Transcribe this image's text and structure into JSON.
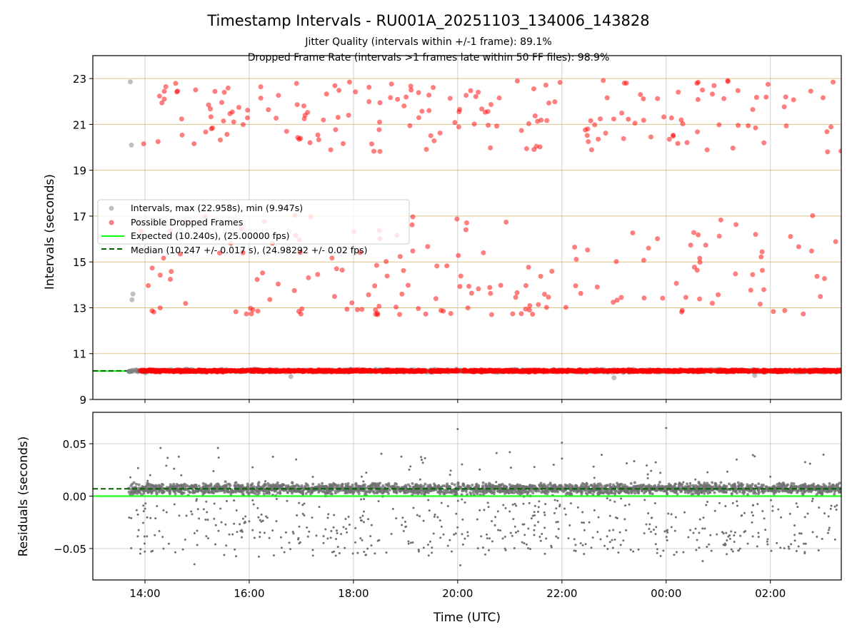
{
  "chart_data": [
    {
      "type": "scatter",
      "title": "Timestamp Intervals - RU001A_20251103_134006_143828",
      "subtitles": [
        "Jitter Quality (intervals within +/-1 frame): 89.1%",
        "Dropped Frame Rate (intervals >1 frames late within 50 FF files): 98.9%"
      ],
      "xlabel": "",
      "ylabel": "Intervals (seconds)",
      "xlim_hours_since_13": [
        0,
        14.36
      ],
      "ylim": [
        9,
        24
      ],
      "yticks": [
        "9",
        "11",
        "13",
        "15",
        "17",
        "19",
        "21",
        "23"
      ],
      "ytick_values": [
        9,
        11,
        13,
        15,
        17,
        19,
        21,
        23
      ],
      "grid": true,
      "legend": {
        "placement": "center-left",
        "entries": [
          "Intervals, max (22.958s), min (9.947s)",
          "Possible Dropped Frames",
          "Expected (10.240s), (25.00000 fps)",
          "Median (10.247 +/- 0.017 s), (24.98292 +/- 0.02 fps)"
        ]
      },
      "series": [
        {
          "name": "Intervals",
          "color": "#808080",
          "baseline": 10.247,
          "spread": 0.017,
          "max": 22.958,
          "min": 9.947,
          "x_start_hours": 0.68
        },
        {
          "name": "Possible Dropped Frames",
          "color": "#ff0000",
          "upper_cluster": [
            19.8,
            22.95
          ],
          "lower_cluster": [
            12.7,
            17.2
          ],
          "count_upper": 190,
          "count_lower": 170
        },
        {
          "name": "Expected",
          "color": "#00ff00",
          "value": 10.24
        },
        {
          "name": "Median",
          "color": "#006400",
          "value": 10.247
        }
      ]
    },
    {
      "type": "scatter",
      "xlabel": "Time (UTC)",
      "ylabel": "Residuals (seconds)",
      "ylim": [
        -0.08,
        0.08
      ],
      "yticks": [
        "−0.05",
        "0.00",
        "0.05"
      ],
      "ytick_values": [
        -0.05,
        0,
        0.05
      ],
      "xticks": [
        "14:00",
        "16:00",
        "18:00",
        "20:00",
        "22:00",
        "00:00",
        "02:00"
      ],
      "xtick_values_hours_since_13": [
        1,
        3,
        5,
        7,
        9,
        11,
        13
      ],
      "grid": true,
      "series": [
        {
          "name": "Residuals",
          "color": "#707070",
          "band_center": 0.007,
          "band_spread": 0.004,
          "negative_range": [
            -0.066,
            -0.002
          ],
          "max": 0.065,
          "min": -0.066
        },
        {
          "name": "Expected",
          "color": "#00ff00",
          "value": 0.0
        },
        {
          "name": "Median",
          "color": "#006400",
          "value": 0.007
        }
      ]
    }
  ]
}
